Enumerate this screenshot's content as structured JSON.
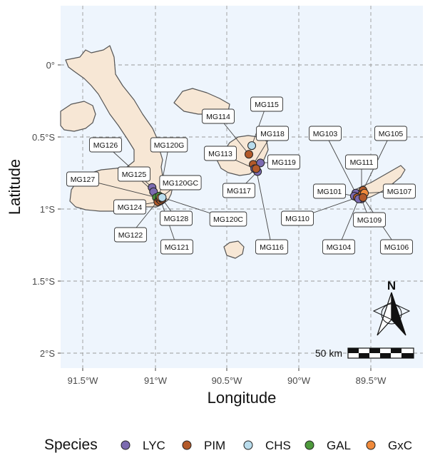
{
  "map": {
    "xlabel": "Longitude",
    "ylabel": "Latitude",
    "x_ticks": [
      "91.5°W",
      "91°W",
      "90.5°W",
      "90°W",
      "89.5°W"
    ],
    "y_ticks": [
      "0°",
      "0.5°S",
      "1°S",
      "1.5°S",
      "2°S"
    ],
    "scale_label": "50 km",
    "north_label": "N",
    "colors": {
      "ocean": "#eef5fd",
      "land": "#f7e7d5",
      "coast": "#555555",
      "grid": "#9a9a9a"
    }
  },
  "legend": {
    "title": "Species",
    "items": [
      {
        "label": "LYC",
        "color": "#7c6bb0"
      },
      {
        "label": "PIM",
        "color": "#b35a2a"
      },
      {
        "label": "CHS",
        "color": "#b9dcec"
      },
      {
        "label": "GAL",
        "color": "#4e9a3c"
      },
      {
        "label": "GxC",
        "color": "#f08a3b"
      }
    ]
  },
  "sites": [
    {
      "id": "MG126",
      "lon": -91.02,
      "lat": -0.85,
      "species": "LYC"
    },
    {
      "id": "MG125",
      "lon": -91.01,
      "lat": -0.88,
      "species": "LYC"
    },
    {
      "id": "MG127",
      "lon": -90.99,
      "lat": -0.92,
      "species": "GAL"
    },
    {
      "id": "MG124",
      "lon": -90.98,
      "lat": -0.95,
      "species": "PIM"
    },
    {
      "id": "MG122",
      "lon": -90.97,
      "lat": -0.93,
      "species": "PIM"
    },
    {
      "id": "MG121",
      "lon": -90.96,
      "lat": -0.94,
      "species": "PIM"
    },
    {
      "id": "MG128",
      "lon": -90.95,
      "lat": -0.93,
      "species": "PIM"
    },
    {
      "id": "MG120G",
      "lon": -90.97,
      "lat": -0.91,
      "species": "GAL"
    },
    {
      "id": "MG120GC",
      "lon": -90.96,
      "lat": -0.92,
      "species": "GxC"
    },
    {
      "id": "MG120C",
      "lon": -90.95,
      "lat": -0.92,
      "species": "CHS"
    },
    {
      "id": "MG114",
      "lon": -90.35,
      "lat": -0.62,
      "species": "PIM"
    },
    {
      "id": "MG115",
      "lon": -90.33,
      "lat": -0.56,
      "species": "CHS"
    },
    {
      "id": "MG118",
      "lon": -90.32,
      "lat": -0.69,
      "species": "PIM"
    },
    {
      "id": "MG113",
      "lon": -90.31,
      "lat": -0.72,
      "species": "LYC"
    },
    {
      "id": "MG119",
      "lon": -90.27,
      "lat": -0.68,
      "species": "LYC"
    },
    {
      "id": "MG117",
      "lon": -90.29,
      "lat": -0.74,
      "species": "LYC"
    },
    {
      "id": "MG116",
      "lon": -90.3,
      "lat": -0.72,
      "species": "PIM"
    },
    {
      "id": "MG103",
      "lon": -89.61,
      "lat": -0.89,
      "species": "LYC"
    },
    {
      "id": "MG105",
      "lon": -89.56,
      "lat": -0.87,
      "species": "PIM"
    },
    {
      "id": "MG111",
      "lon": -89.57,
      "lat": -0.9,
      "species": "PIM"
    },
    {
      "id": "MG107",
      "lon": -89.55,
      "lat": -0.89,
      "species": "GxC"
    },
    {
      "id": "MG101",
      "lon": -89.62,
      "lat": -0.91,
      "species": "LYC"
    },
    {
      "id": "MG110",
      "lon": -89.6,
      "lat": -0.92,
      "species": "PIM"
    },
    {
      "id": "MG109",
      "lon": -89.57,
      "lat": -0.93,
      "species": "LYC"
    },
    {
      "id": "MG104",
      "lon": -89.59,
      "lat": -0.93,
      "species": "LYC"
    },
    {
      "id": "MG106",
      "lon": -89.56,
      "lat": -0.92,
      "species": "PIM"
    }
  ]
}
